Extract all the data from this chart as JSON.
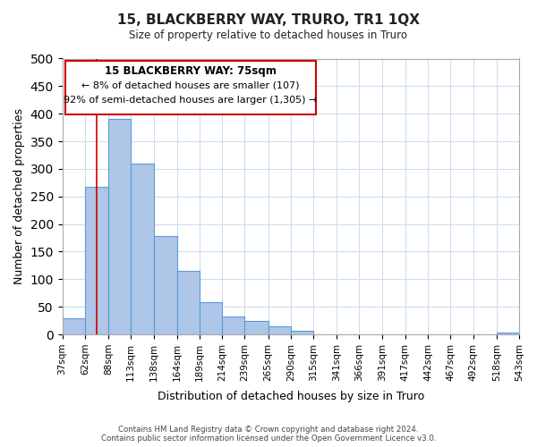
{
  "title": "15, BLACKBERRY WAY, TRURO, TR1 1QX",
  "subtitle": "Size of property relative to detached houses in Truro",
  "xlabel": "Distribution of detached houses by size in Truro",
  "ylabel": "Number of detached properties",
  "bar_values": [
    29,
    267,
    391,
    310,
    179,
    115,
    58,
    32,
    25,
    15,
    7,
    0,
    0,
    0,
    0,
    0,
    0,
    0,
    0,
    4
  ],
  "bar_labels": [
    "37sqm",
    "62sqm",
    "88sqm",
    "113sqm",
    "138sqm",
    "164sqm",
    "189sqm",
    "214sqm",
    "239sqm",
    "265sqm",
    "290sqm",
    "315sqm",
    "341sqm",
    "366sqm",
    "391sqm",
    "417sqm",
    "442sqm",
    "467sqm",
    "492sqm",
    "518sqm",
    "543sqm"
  ],
  "bar_color": "#aec6e8",
  "bar_edge_color": "#5b9bd5",
  "ylim": [
    0,
    500
  ],
  "yticks": [
    0,
    50,
    100,
    150,
    200,
    250,
    300,
    350,
    400,
    450,
    500
  ],
  "property_line_label": "15 BLACKBERRY WAY: 75sqm",
  "annotation_line1": "← 8% of detached houses are smaller (107)",
  "annotation_line2": "92% of semi-detached houses are larger (1,305) →",
  "annotation_box_edge_color": "#cc0000",
  "vline_color": "#cc0000",
  "vline_x": 75,
  "footer_line1": "Contains HM Land Registry data © Crown copyright and database right 2024.",
  "footer_line2": "Contains public sector information licensed under the Open Government Licence v3.0.",
  "bin_edges": [
    37,
    62,
    88,
    113,
    138,
    164,
    189,
    214,
    239,
    265,
    290,
    315,
    341,
    366,
    391,
    417,
    442,
    467,
    492,
    518,
    543
  ]
}
